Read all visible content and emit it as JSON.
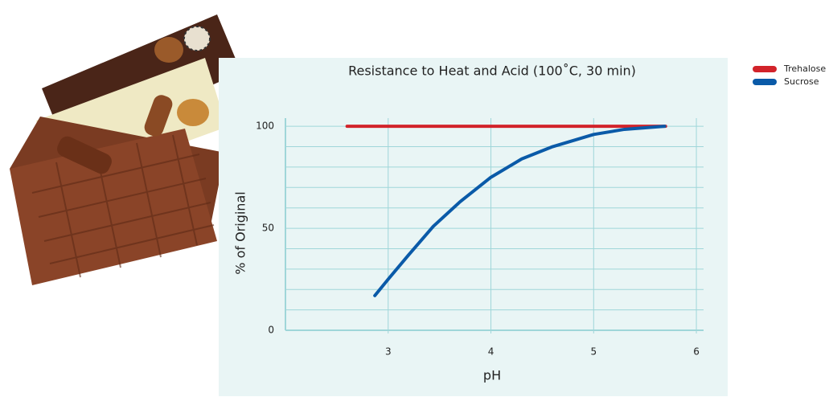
{
  "chart_data": {
    "type": "line",
    "title": "Resistance to Heat and Acid (100˚C, 30 min)",
    "x_label": "pH",
    "y_label": "% of Original",
    "xlim": [
      2,
      6.07
    ],
    "xticks": [
      3,
      4,
      5,
      6
    ],
    "ylim": [
      0,
      104
    ],
    "yticks": [
      0,
      50,
      100
    ],
    "minor_yticks": [
      10,
      20,
      30,
      40,
      60,
      70,
      80,
      90
    ],
    "grid": true,
    "legend": "top-right",
    "series": [
      {
        "name": "Trehalose",
        "color": "#d2232a",
        "x": [
          2.6,
          5.7
        ],
        "values": [
          100,
          100
        ]
      },
      {
        "name": "Sucrose",
        "color": "#0a5aa8",
        "x": [
          2.87,
          3.0,
          3.2,
          3.44,
          3.7,
          4.0,
          4.3,
          4.6,
          5.0,
          5.3,
          5.69
        ],
        "values": [
          17,
          25,
          37,
          51,
          63,
          75,
          84,
          90,
          96,
          98.5,
          100
        ]
      }
    ]
  }
}
